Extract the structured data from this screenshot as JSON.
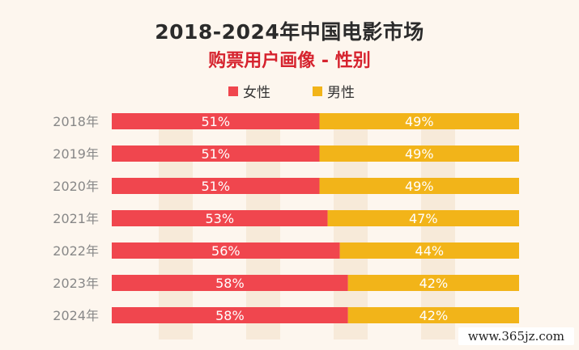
{
  "colors": {
    "female": "#f0464e",
    "male": "#f2b419",
    "subtitle": "#d6232e"
  },
  "legend": {
    "female": "女性",
    "male": "男性"
  },
  "watermark": "www.365jz.com",
  "chart_data": {
    "type": "bar",
    "orientation": "horizontal",
    "stacked": true,
    "title": "2018-2024年中国电影市场",
    "subtitle": "购票用户画像 - 性别",
    "xlim": [
      0,
      100
    ],
    "legend_position": "top-center",
    "grid": false,
    "categories": [
      "2018年",
      "2019年",
      "2020年",
      "2021年",
      "2022年",
      "2023年",
      "2024年"
    ],
    "series": [
      {
        "name": "女性",
        "values": [
          51,
          51,
          51,
          53,
          56,
          58,
          58
        ],
        "labels": [
          "51%",
          "51%",
          "51%",
          "53%",
          "56%",
          "58%",
          "58%"
        ]
      },
      {
        "name": "男性",
        "values": [
          49,
          49,
          49,
          47,
          44,
          42,
          42
        ],
        "labels": [
          "49%",
          "49%",
          "49%",
          "47%",
          "44%",
          "42%",
          "42%"
        ]
      }
    ]
  }
}
